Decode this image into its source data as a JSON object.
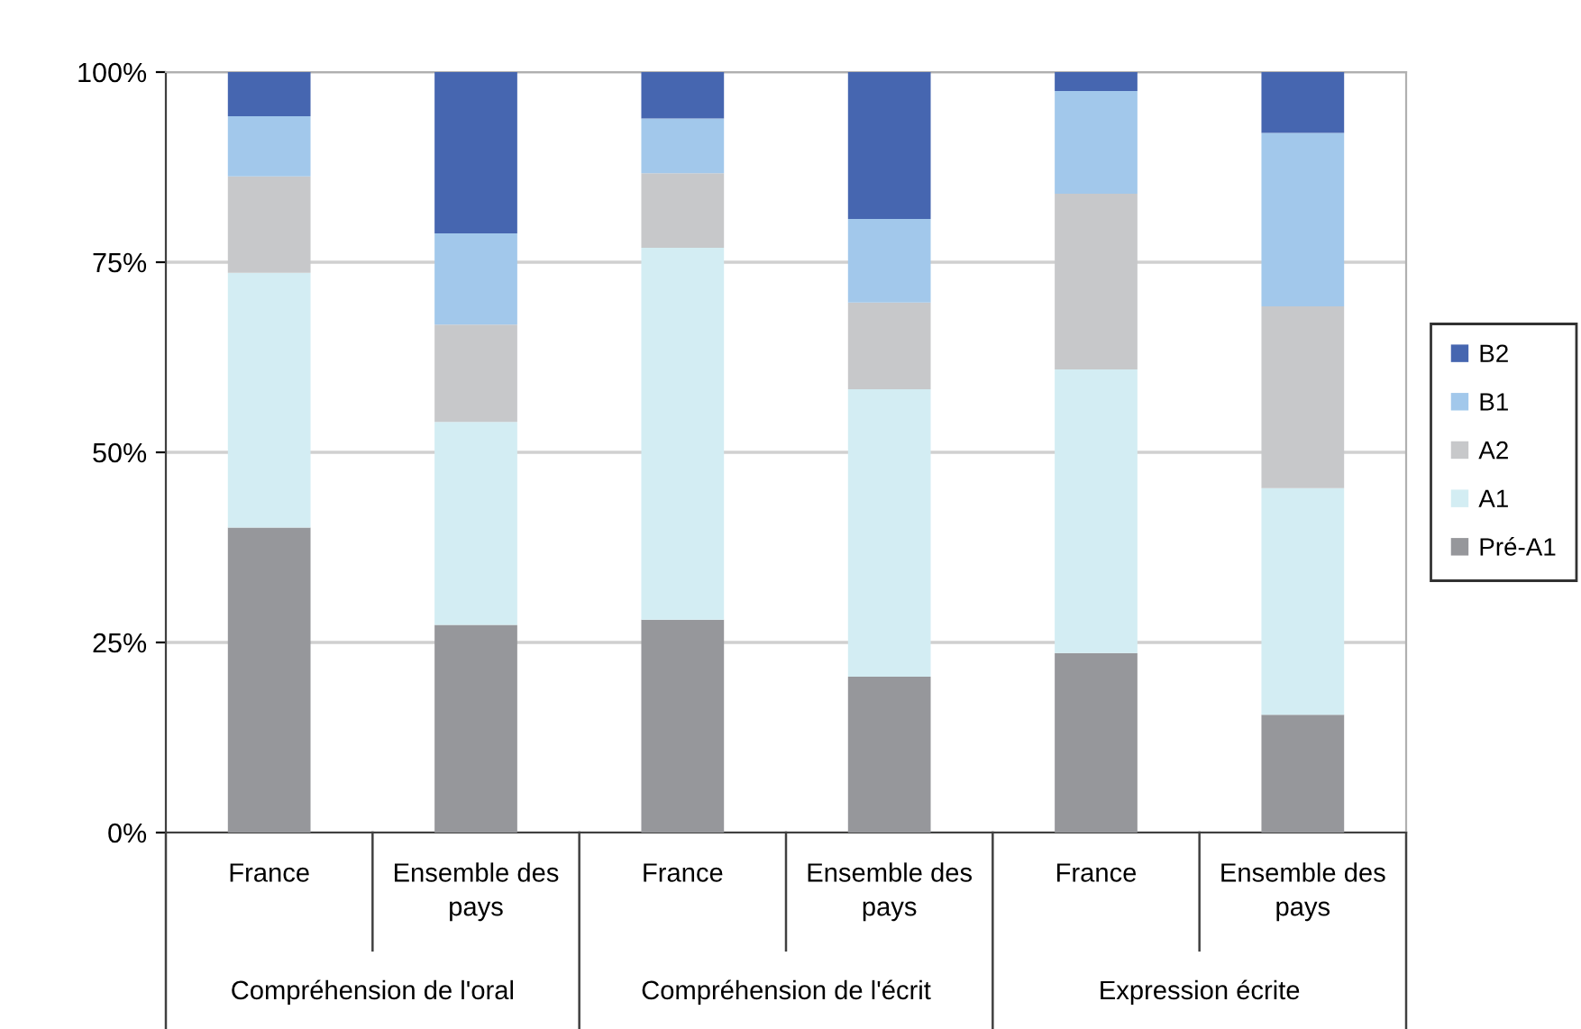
{
  "chart_data": {
    "type": "bar",
    "stacked": true,
    "categories": [
      "France",
      "Ensemble des pays",
      "France",
      "Ensemble des pays",
      "France",
      "Ensemble des pays"
    ],
    "annotations": [
      "Compréhension de l'oral",
      "Compréhension de l'écrit",
      "Expression écrite"
    ],
    "series": [
      {
        "name": "Pré-A1",
        "color": "#96979b",
        "values": [
          40.1,
          27.3,
          28.0,
          20.5,
          23.6,
          15.5
        ]
      },
      {
        "name": "A1",
        "color": "#d3edf3",
        "values": [
          33.5,
          26.7,
          48.9,
          37.8,
          37.3,
          29.8
        ]
      },
      {
        "name": "A2",
        "color": "#c7c8ca",
        "values": [
          12.7,
          12.8,
          9.8,
          11.4,
          23.1,
          23.9
        ]
      },
      {
        "name": "B1",
        "color": "#a2c8eb",
        "values": [
          7.9,
          12.0,
          7.2,
          11.0,
          13.5,
          22.8
        ]
      },
      {
        "name": "B2",
        "color": "#4666b0",
        "values": [
          5.8,
          21.2,
          6.1,
          19.3,
          2.5,
          8.0
        ]
      }
    ],
    "ylim": [
      0,
      100
    ],
    "yticks": [
      {
        "value": 0,
        "label": "0%"
      },
      {
        "value": 25,
        "label": "25%"
      },
      {
        "value": 50,
        "label": "50%"
      },
      {
        "value": 75,
        "label": "75%"
      },
      {
        "value": 100,
        "label": "100%"
      }
    ],
    "grid": "y",
    "legend": "right"
  }
}
